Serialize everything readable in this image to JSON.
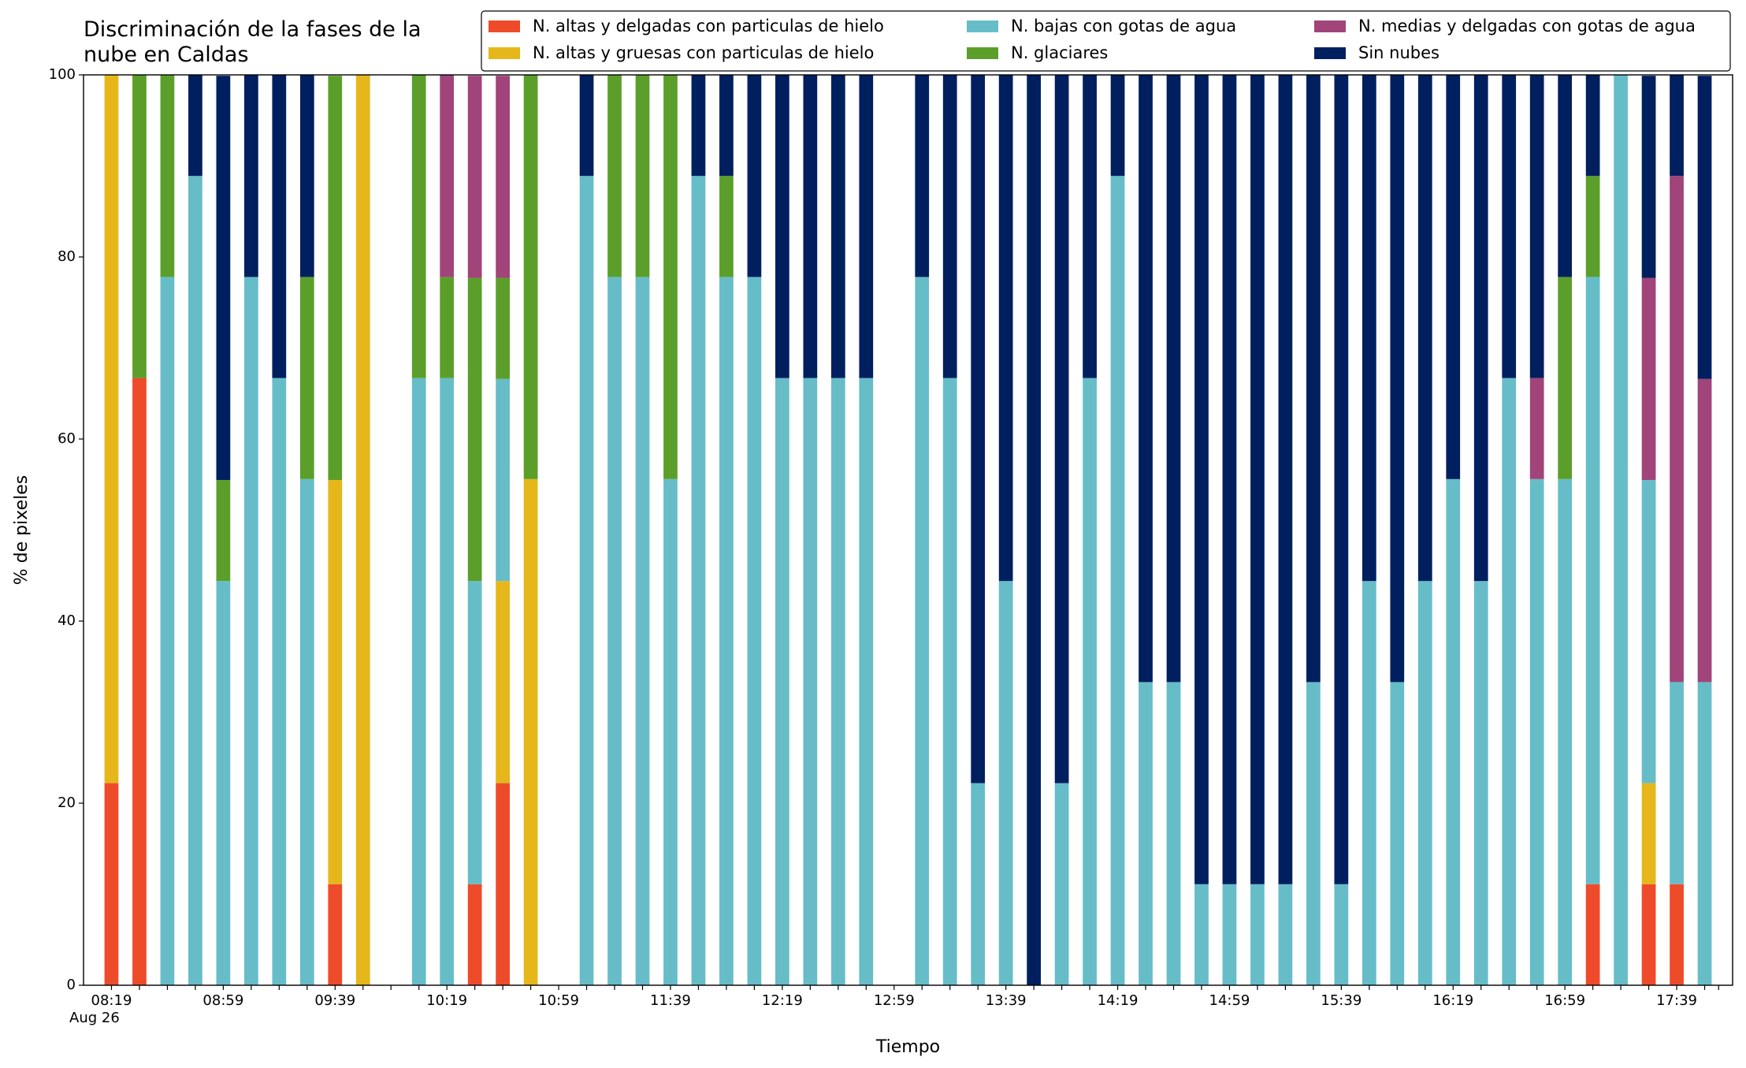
{
  "chart_data": {
    "type": "stacked_bar",
    "title": "Discriminación de la fases de la nube en Caldas",
    "xlabel": "Tiempo",
    "ylabel": "% de pixeles",
    "date_label": "Aug 26",
    "categories": [
      "08:19",
      null,
      null,
      null,
      "08:59",
      null,
      null,
      null,
      "09:39",
      null,
      null,
      null,
      "10:19",
      null,
      null,
      null,
      "10:59",
      null,
      null,
      null,
      "11:39",
      null,
      null,
      null,
      "12:19",
      null,
      null,
      null,
      "12:59",
      null,
      null,
      null,
      "13:39",
      null,
      null,
      null,
      "14:19",
      null,
      null,
      null,
      "14:59",
      null,
      null,
      null,
      "15:39",
      null,
      null,
      null,
      "16:19",
      null,
      null,
      null,
      "16:59",
      null,
      null,
      null,
      "17:39",
      null
    ],
    "ylim": [
      0,
      100
    ],
    "yticks": [
      0,
      20,
      40,
      60,
      80,
      100
    ],
    "legend": "top-right",
    "series": [
      {
        "name": "N. altas y delgadas con particulas de hielo",
        "color": "#ee4b2b",
        "values": [
          22.2,
          66.7,
          0,
          0,
          0,
          0,
          0,
          0,
          11.1,
          0,
          null,
          0,
          0,
          11.1,
          22.2,
          0,
          null,
          0,
          0,
          0,
          0,
          0,
          0,
          0,
          0,
          0,
          0,
          0,
          null,
          0,
          0,
          0,
          0,
          0,
          0,
          0,
          0,
          0,
          0,
          0,
          0,
          0,
          0,
          0,
          0,
          0,
          0,
          0,
          0,
          0,
          0,
          0,
          0,
          11.1,
          0,
          11.1,
          11.1,
          0
        ]
      },
      {
        "name": "N. altas y gruesas con particulas de hielo",
        "color": "#e5b71b",
        "values": [
          77.8,
          0,
          0,
          0,
          0,
          0,
          0,
          0,
          44.4,
          100,
          null,
          0,
          0,
          0,
          22.2,
          55.6,
          null,
          0,
          0,
          0,
          0,
          0,
          0,
          0,
          0,
          0,
          0,
          0,
          null,
          0,
          0,
          0,
          0,
          0,
          0,
          0,
          0,
          0,
          0,
          0,
          0,
          0,
          0,
          0,
          0,
          0,
          0,
          0,
          0,
          0,
          0,
          0,
          0,
          0,
          0,
          11.1,
          0,
          0
        ]
      },
      {
        "name": "N. bajas con gotas de agua",
        "color": "#66bdc8",
        "values": [
          0,
          0,
          77.8,
          88.9,
          44.4,
          77.8,
          66.7,
          55.6,
          0,
          0,
          null,
          66.7,
          66.7,
          33.3,
          22.2,
          0,
          null,
          88.9,
          77.8,
          77.8,
          55.6,
          88.9,
          77.8,
          77.8,
          66.7,
          66.7,
          66.7,
          66.7,
          null,
          77.8,
          66.7,
          22.2,
          44.4,
          0,
          22.2,
          66.7,
          88.9,
          33.3,
          33.3,
          11.1,
          11.1,
          11.1,
          11.1,
          33.3,
          11.1,
          44.4,
          33.3,
          44.4,
          55.6,
          44.4,
          66.7,
          55.6,
          55.6,
          66.7,
          100,
          33.3,
          22.2,
          33.3
        ]
      },
      {
        "name": "N. glaciares",
        "color": "#5b9f2a",
        "values": [
          0,
          33.3,
          22.2,
          0,
          11.1,
          0,
          0,
          22.2,
          44.4,
          0,
          null,
          33.3,
          11.1,
          33.3,
          11.1,
          44.4,
          null,
          0,
          22.2,
          22.2,
          44.4,
          0,
          11.1,
          0,
          0,
          0,
          0,
          0,
          null,
          0,
          0,
          0,
          0,
          0,
          0,
          0,
          0,
          0,
          0,
          0,
          0,
          0,
          0,
          0,
          0,
          0,
          0,
          0,
          0,
          0,
          0,
          0,
          22.2,
          11.1,
          0,
          0,
          0,
          0
        ]
      },
      {
        "name": "N. medias y delgadas con gotas de agua",
        "color": "#a1447a",
        "values": [
          0,
          0,
          0,
          0,
          0,
          0,
          0,
          0,
          0,
          0,
          null,
          0,
          22.2,
          22.2,
          22.2,
          0,
          null,
          0,
          0,
          0,
          0,
          0,
          0,
          0,
          0,
          0,
          0,
          0,
          null,
          0,
          0,
          0,
          0,
          0,
          0,
          0,
          0,
          0,
          0,
          0,
          0,
          0,
          0,
          0,
          0,
          0,
          0,
          0,
          0,
          0,
          0,
          11.1,
          0,
          0,
          0,
          22.2,
          55.6,
          33.3
        ]
      },
      {
        "name": "Sin nubes",
        "color": "#001f5f",
        "values": [
          0,
          0,
          0,
          11.1,
          44.4,
          22.2,
          33.3,
          22.2,
          0,
          0,
          null,
          0,
          0,
          0,
          0,
          0,
          null,
          11.1,
          0,
          0,
          0,
          11.1,
          11.1,
          22.2,
          33.3,
          33.3,
          33.3,
          33.3,
          null,
          22.2,
          33.3,
          77.8,
          55.6,
          100,
          77.8,
          33.3,
          11.1,
          66.7,
          66.7,
          88.9,
          88.9,
          88.9,
          88.9,
          66.7,
          88.9,
          55.6,
          66.7,
          55.6,
          44.4,
          55.6,
          33.3,
          33.3,
          22.2,
          11.1,
          0,
          22.2,
          11.1,
          33.3
        ]
      }
    ]
  }
}
